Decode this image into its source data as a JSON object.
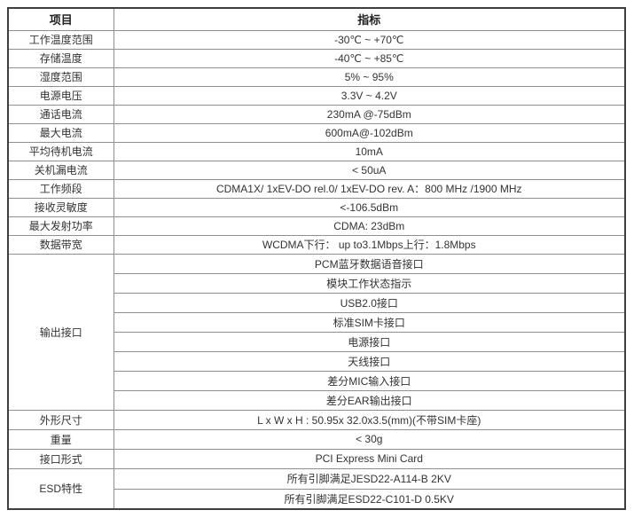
{
  "table": {
    "header": {
      "item": "项目",
      "value": "指标"
    },
    "rows": [
      {
        "item": "工作温度范围",
        "value": "-30℃ ~ +70℃"
      },
      {
        "item": "存储温度",
        "value": "-40℃ ~ +85℃"
      },
      {
        "item": "湿度范围",
        "value": "5% ~ 95%"
      },
      {
        "item": "电源电压",
        "value": "3.3V ~ 4.2V"
      },
      {
        "item": "通话电流",
        "value": "230mA @-75dBm"
      },
      {
        "item": "最大电流",
        "value": "600mA@-102dBm"
      },
      {
        "item": "平均待机电流",
        "value": "10mA"
      },
      {
        "item": "关机漏电流",
        "value": "< 50uA"
      },
      {
        "item": "工作频段",
        "value": "CDMA1X/ 1xEV-DO rel.0/ 1xEV-DO rev. A：800 MHz /1900 MHz"
      },
      {
        "item": "接收灵敏度",
        "value": "<-106.5dBm"
      },
      {
        "item": "最大发射功率",
        "value": "CDMA: 23dBm"
      },
      {
        "item": "数据带宽",
        "value": "WCDMA下行： up to3.1Mbps上行：1.8Mbps"
      },
      {
        "item": "输出接口",
        "values": [
          "PCM蓝牙数据语音接口",
          "模块工作状态指示",
          "USB2.0接口",
          "标准SIM卡接口",
          "电源接口",
          "天线接口",
          "差分MIC输入接口",
          "差分EAR输出接口"
        ]
      },
      {
        "item": "外形尺寸",
        "value": "L x W x H : 50.95x 32.0x3.5(mm)(不带SIM卡座)"
      },
      {
        "item": "重量",
        "value": "< 30g"
      },
      {
        "item": "接口形式",
        "value": "PCI Express Mini Card"
      },
      {
        "item": "ESD特性",
        "values": [
          "所有引脚满足JESD22-A114-B  2KV",
          "所有引脚满足ESD22-C101-D  0.5KV"
        ]
      }
    ]
  }
}
